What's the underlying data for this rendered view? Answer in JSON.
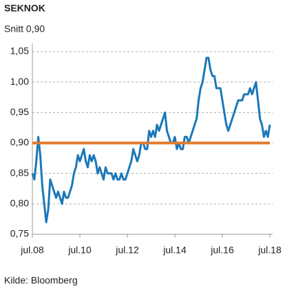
{
  "chart_data": {
    "type": "line",
    "title": "SEKNOK",
    "subtitle": "Snitt 0,90",
    "source": "Kilde: Bloomberg",
    "x": [
      "2008-07",
      "2008-08",
      "2008-09",
      "2008-10",
      "2008-11",
      "2008-12",
      "2009-01",
      "2009-02",
      "2009-03",
      "2009-04",
      "2009-05",
      "2009-06",
      "2009-07",
      "2009-08",
      "2009-09",
      "2009-10",
      "2009-11",
      "2009-12",
      "2010-01",
      "2010-02",
      "2010-03",
      "2010-04",
      "2010-05",
      "2010-06",
      "2010-07",
      "2010-08",
      "2010-09",
      "2010-10",
      "2010-11",
      "2010-12",
      "2011-01",
      "2011-02",
      "2011-03",
      "2011-04",
      "2011-05",
      "2011-06",
      "2011-07",
      "2011-08",
      "2011-09",
      "2011-10",
      "2011-11",
      "2011-12",
      "2012-01",
      "2012-02",
      "2012-03",
      "2012-04",
      "2012-05",
      "2012-06",
      "2012-07",
      "2012-08",
      "2012-09",
      "2012-10",
      "2012-11",
      "2012-12",
      "2013-01",
      "2013-02",
      "2013-03",
      "2013-04",
      "2013-05",
      "2013-06",
      "2013-07",
      "2013-08",
      "2013-09",
      "2013-10",
      "2013-11",
      "2013-12",
      "2014-01",
      "2014-02",
      "2014-03",
      "2014-04",
      "2014-05",
      "2014-06",
      "2014-07",
      "2014-08",
      "2014-09",
      "2014-10",
      "2014-11",
      "2014-12",
      "2015-01",
      "2015-02",
      "2015-03",
      "2015-04",
      "2015-05",
      "2015-06",
      "2015-07",
      "2015-08",
      "2015-09",
      "2015-10",
      "2015-11",
      "2015-12",
      "2016-01",
      "2016-02",
      "2016-03",
      "2016-04",
      "2016-05",
      "2016-06",
      "2016-07",
      "2016-08",
      "2016-09",
      "2016-10",
      "2016-11",
      "2016-12",
      "2017-01",
      "2017-02",
      "2017-03",
      "2017-04",
      "2017-05",
      "2017-06",
      "2017-07",
      "2017-08",
      "2017-09",
      "2017-10",
      "2017-11",
      "2017-12",
      "2018-01",
      "2018-02",
      "2018-03",
      "2018-04",
      "2018-05",
      "2018-06",
      "2018-07"
    ],
    "series": [
      {
        "name": "SEKNOK",
        "color": "#1a78b8",
        "values": [
          0.85,
          0.84,
          0.87,
          0.91,
          0.88,
          0.83,
          0.8,
          0.77,
          0.79,
          0.84,
          0.83,
          0.82,
          0.81,
          0.82,
          0.81,
          0.8,
          0.82,
          0.81,
          0.81,
          0.82,
          0.83,
          0.85,
          0.86,
          0.88,
          0.87,
          0.88,
          0.89,
          0.87,
          0.86,
          0.88,
          0.87,
          0.88,
          0.87,
          0.85,
          0.86,
          0.85,
          0.84,
          0.86,
          0.85,
          0.85,
          0.85,
          0.84,
          0.85,
          0.84,
          0.84,
          0.85,
          0.84,
          0.84,
          0.85,
          0.86,
          0.87,
          0.89,
          0.88,
          0.87,
          0.88,
          0.9,
          0.9,
          0.89,
          0.89,
          0.92,
          0.91,
          0.92,
          0.91,
          0.93,
          0.92,
          0.93,
          0.94,
          0.95,
          0.92,
          0.91,
          0.9,
          0.9,
          0.91,
          0.89,
          0.9,
          0.89,
          0.89,
          0.91,
          0.91,
          0.9,
          0.91,
          0.92,
          0.93,
          0.94,
          0.97,
          0.99,
          1.0,
          1.02,
          1.04,
          1.04,
          1.02,
          1.01,
          1.01,
          0.99,
          0.99,
          0.99,
          0.97,
          0.95,
          0.93,
          0.92,
          0.93,
          0.94,
          0.95,
          0.96,
          0.97,
          0.97,
          0.97,
          0.98,
          0.98,
          0.98,
          0.99,
          0.98,
          0.99,
          1.0,
          0.97,
          0.94,
          0.93,
          0.91,
          0.92,
          0.91,
          0.93
        ]
      }
    ],
    "reference_line": {
      "value": 0.9,
      "color": "#e07b2e"
    },
    "xlim": [
      "2008-07",
      "2018-07"
    ],
    "xticks": [
      {
        "value": "2008-07",
        "label": "jul.08"
      },
      {
        "value": "2010-07",
        "label": "jul.10"
      },
      {
        "value": "2012-07",
        "label": "jul.12"
      },
      {
        "value": "2014-07",
        "label": "jul.14"
      },
      {
        "value": "2016-07",
        "label": "jul.16"
      },
      {
        "value": "2018-07",
        "label": "jul.18"
      }
    ],
    "ylim": [
      0.75,
      1.05
    ],
    "yticks": [
      {
        "value": 0.75,
        "label": "0,75"
      },
      {
        "value": 0.8,
        "label": "0,80"
      },
      {
        "value": 0.85,
        "label": "0,85"
      },
      {
        "value": 0.9,
        "label": "0,90"
      },
      {
        "value": 0.95,
        "label": "0,95"
      },
      {
        "value": 1.0,
        "label": "1,00"
      },
      {
        "value": 1.05,
        "label": "1,05"
      }
    ],
    "grid": true
  }
}
